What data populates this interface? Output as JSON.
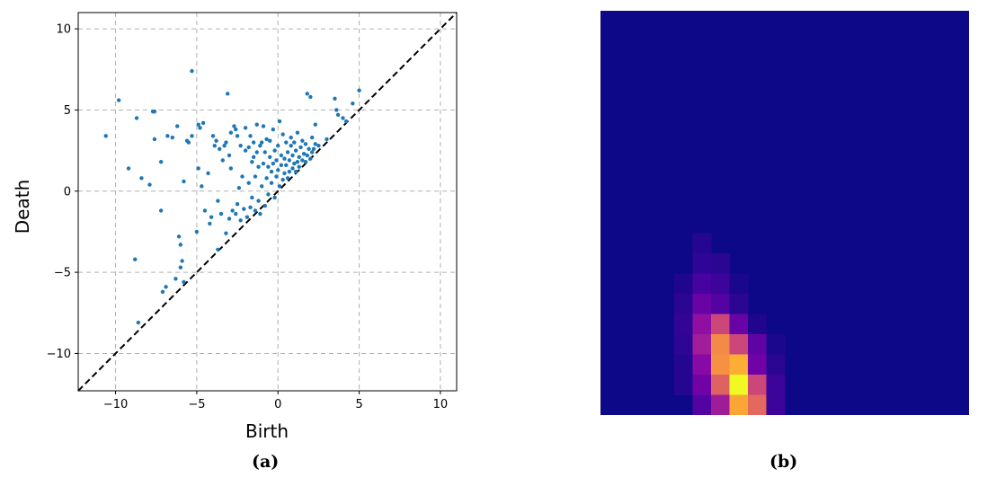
{
  "chart_data": [
    {
      "type": "scatter",
      "xlabel": "Birth",
      "ylabel": "Death",
      "xlim": [
        -12.3,
        11
      ],
      "ylim": [
        -12.3,
        11
      ],
      "xticks": [
        -10,
        -5,
        0,
        5,
        10
      ],
      "yticks": [
        -10,
        -5,
        0,
        5,
        10
      ],
      "tick_labels_x": [
        "−10",
        "−5",
        "0",
        "5",
        "10"
      ],
      "tick_labels_y": [
        "−10",
        "−5",
        "0",
        "5",
        "10"
      ],
      "grid": true,
      "diagonal": "y = x (dashed black)",
      "point_color": "#1f77b4",
      "points": [
        [
          -10.6,
          3.4
        ],
        [
          -9.8,
          5.6
        ],
        [
          -9.2,
          1.4
        ],
        [
          -8.7,
          4.5
        ],
        [
          -8.8,
          -4.2
        ],
        [
          -8.6,
          -8.1
        ],
        [
          -8.4,
          0.8
        ],
        [
          -7.9,
          0.4
        ],
        [
          -7.7,
          4.9
        ],
        [
          -7.6,
          4.9
        ],
        [
          -7.6,
          3.2
        ],
        [
          -7.2,
          -1.2
        ],
        [
          -7.2,
          1.8
        ],
        [
          -7.1,
          -6.2
        ],
        [
          -6.9,
          -5.9
        ],
        [
          -6.8,
          3.4
        ],
        [
          -6.5,
          3.3
        ],
        [
          -6.3,
          -5.4
        ],
        [
          -6.2,
          4.0
        ],
        [
          -6.1,
          -2.8
        ],
        [
          -6.0,
          -3.3
        ],
        [
          -6.0,
          -4.7
        ],
        [
          -5.9,
          -4.3
        ],
        [
          -5.8,
          0.6
        ],
        [
          -5.8,
          -5.6
        ],
        [
          -5.6,
          3.1
        ],
        [
          -5.5,
          3.0
        ],
        [
          -5.3,
          3.4
        ],
        [
          -5.3,
          7.4
        ],
        [
          -5.0,
          -2.5
        ],
        [
          -4.9,
          4.1
        ],
        [
          -4.9,
          1.4
        ],
        [
          -4.8,
          3.9
        ],
        [
          -4.7,
          0.3
        ],
        [
          -4.6,
          4.2
        ],
        [
          -4.5,
          -1.2
        ],
        [
          -4.3,
          1.1
        ],
        [
          -4.2,
          -2.0
        ],
        [
          -4.1,
          -1.6
        ],
        [
          -4.0,
          3.4
        ],
        [
          -3.9,
          2.8
        ],
        [
          -3.8,
          3.1
        ],
        [
          -3.7,
          -3.6
        ],
        [
          -3.7,
          -0.6
        ],
        [
          -3.6,
          2.6
        ],
        [
          -3.5,
          -1.4
        ],
        [
          -3.4,
          1.9
        ],
        [
          -3.3,
          2.8
        ],
        [
          -3.2,
          -2.6
        ],
        [
          -3.2,
          3.0
        ],
        [
          -3.1,
          6.0
        ],
        [
          -3.0,
          -1.7
        ],
        [
          -3.0,
          2.2
        ],
        [
          -2.9,
          3.6
        ],
        [
          -2.9,
          1.4
        ],
        [
          -2.8,
          -1.2
        ],
        [
          -2.7,
          4.0
        ],
        [
          -2.6,
          -1.4
        ],
        [
          -2.6,
          3.8
        ],
        [
          -2.5,
          -0.8
        ],
        [
          -2.5,
          3.4
        ],
        [
          -2.4,
          0.2
        ],
        [
          -2.3,
          -1.8
        ],
        [
          -2.3,
          2.8
        ],
        [
          -2.2,
          0.9
        ],
        [
          -2.1,
          -1.1
        ],
        [
          -2.0,
          2.5
        ],
        [
          -2.0,
          3.9
        ],
        [
          -1.9,
          -1.6
        ],
        [
          -1.8,
          0.5
        ],
        [
          -1.8,
          2.7
        ],
        [
          -1.7,
          -1.0
        ],
        [
          -1.7,
          3.4
        ],
        [
          -1.6,
          1.8
        ],
        [
          -1.6,
          -0.4
        ],
        [
          -1.5,
          2.1
        ],
        [
          -1.5,
          3.0
        ],
        [
          -1.4,
          -1.2
        ],
        [
          -1.4,
          0.9
        ],
        [
          -1.3,
          2.4
        ],
        [
          -1.3,
          4.1
        ],
        [
          -1.2,
          -0.6
        ],
        [
          -1.2,
          1.5
        ],
        [
          -1.1,
          2.8
        ],
        [
          -1.1,
          -1.4
        ],
        [
          -1.0,
          0.3
        ],
        [
          -1.0,
          3.0
        ],
        [
          -0.9,
          4.0
        ],
        [
          -0.9,
          1.7
        ],
        [
          -0.8,
          -0.9
        ],
        [
          -0.8,
          2.4
        ],
        [
          -0.7,
          0.8
        ],
        [
          -0.7,
          3.2
        ],
        [
          -0.6,
          1.5
        ],
        [
          -0.6,
          -0.2
        ],
        [
          -0.5,
          2.1
        ],
        [
          -0.5,
          3.1
        ],
        [
          -0.4,
          0.5
        ],
        [
          -0.4,
          1.2
        ],
        [
          -0.3,
          1.7
        ],
        [
          -0.3,
          3.8
        ],
        [
          -0.2,
          -0.4
        ],
        [
          -0.2,
          2.5
        ],
        [
          -0.1,
          0.9
        ],
        [
          -0.1,
          1.9
        ],
        [
          0.0,
          2.8
        ],
        [
          0.0,
          1.3
        ],
        [
          0.1,
          0.3
        ],
        [
          0.1,
          4.3
        ],
        [
          0.2,
          1.6
        ],
        [
          0.2,
          2.2
        ],
        [
          0.3,
          0.7
        ],
        [
          0.3,
          3.5
        ],
        [
          0.4,
          1.1
        ],
        [
          0.4,
          2.0
        ],
        [
          0.5,
          1.6
        ],
        [
          0.5,
          3.0
        ],
        [
          0.6,
          0.8
        ],
        [
          0.6,
          2.4
        ],
        [
          0.7,
          1.2
        ],
        [
          0.7,
          1.9
        ],
        [
          0.8,
          2.8
        ],
        [
          0.8,
          3.3
        ],
        [
          0.9,
          1.4
        ],
        [
          0.9,
          2.2
        ],
        [
          1.0,
          1.7
        ],
        [
          1.0,
          3.0
        ],
        [
          1.1,
          1.2
        ],
        [
          1.1,
          2.5
        ],
        [
          1.2,
          1.8
        ],
        [
          1.2,
          3.6
        ],
        [
          1.3,
          2.1
        ],
        [
          1.3,
          1.5
        ],
        [
          1.4,
          2.7
        ],
        [
          1.5,
          1.9
        ],
        [
          1.5,
          3.1
        ],
        [
          1.6,
          2.3
        ],
        [
          1.7,
          1.8
        ],
        [
          1.7,
          2.9
        ],
        [
          1.8,
          6.0
        ],
        [
          1.8,
          2.2
        ],
        [
          1.9,
          2.6
        ],
        [
          2.0,
          2.0
        ],
        [
          2.0,
          5.8
        ],
        [
          2.1,
          2.4
        ],
        [
          2.1,
          3.3
        ],
        [
          2.2,
          2.6
        ],
        [
          2.3,
          4.1
        ],
        [
          2.3,
          2.9
        ],
        [
          2.5,
          2.8
        ],
        [
          3.0,
          3.2
        ],
        [
          3.5,
          5.7
        ],
        [
          3.6,
          5.0
        ],
        [
          3.7,
          4.7
        ],
        [
          4.0,
          4.5
        ],
        [
          4.2,
          4.3
        ],
        [
          4.6,
          5.4
        ],
        [
          5.0,
          6.2
        ]
      ]
    },
    {
      "type": "heatmap",
      "rows": 20,
      "cols": 20,
      "background_color": "#0d0887",
      "colormap": "plasma",
      "cells": [
        [
          12,
          5,
          0.05
        ],
        [
          13,
          5,
          0.07
        ],
        [
          13,
          6,
          0.06
        ],
        [
          14,
          4,
          0.04
        ],
        [
          14,
          5,
          0.12
        ],
        [
          14,
          6,
          0.1
        ],
        [
          14,
          7,
          0.03
        ],
        [
          15,
          4,
          0.06
        ],
        [
          15,
          5,
          0.2
        ],
        [
          15,
          6,
          0.15
        ],
        [
          15,
          7,
          0.06
        ],
        [
          16,
          4,
          0.08
        ],
        [
          16,
          5,
          0.3
        ],
        [
          16,
          6,
          0.5
        ],
        [
          16,
          7,
          0.2
        ],
        [
          16,
          8,
          0.04
        ],
        [
          17,
          4,
          0.07
        ],
        [
          17,
          5,
          0.36
        ],
        [
          17,
          6,
          0.72
        ],
        [
          17,
          7,
          0.5
        ],
        [
          17,
          8,
          0.18
        ],
        [
          17,
          9,
          0.03
        ],
        [
          18,
          4,
          0.05
        ],
        [
          18,
          5,
          0.28
        ],
        [
          18,
          6,
          0.74
        ],
        [
          18,
          7,
          0.82
        ],
        [
          18,
          8,
          0.22
        ],
        [
          18,
          9,
          0.06
        ],
        [
          19,
          4,
          0.05
        ],
        [
          19,
          5,
          0.22
        ],
        [
          19,
          6,
          0.6
        ],
        [
          19,
          7,
          1.0
        ],
        [
          19,
          8,
          0.5
        ],
        [
          19,
          9,
          0.1
        ],
        [
          20,
          5,
          0.15
        ],
        [
          20,
          6,
          0.35
        ],
        [
          20,
          7,
          0.8
        ],
        [
          20,
          8,
          0.62
        ],
        [
          20,
          9,
          0.1
        ]
      ],
      "note_rows_offset": 1
    }
  ],
  "labels": {
    "panel_a": "(a)",
    "panel_b": "(b)"
  }
}
